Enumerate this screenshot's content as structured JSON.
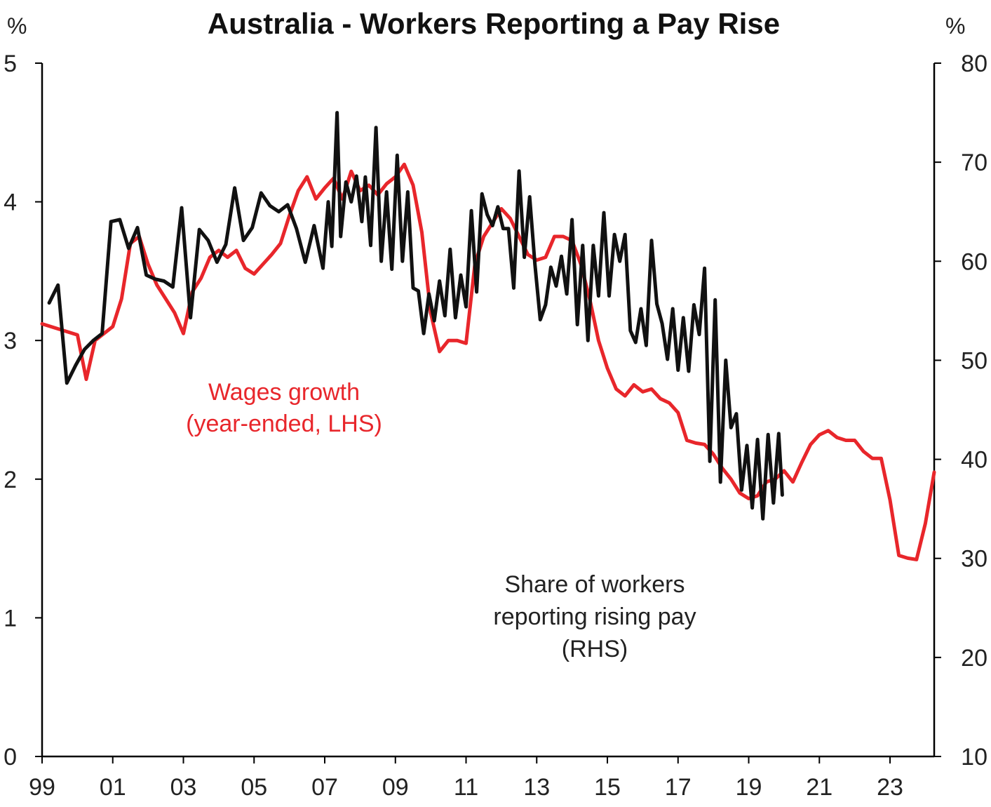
{
  "chart_data": {
    "type": "line",
    "title": "Australia - Workers Reporting a Pay Rise",
    "left_unit": "%",
    "right_unit": "%",
    "colors": {
      "wages": "#e8262b",
      "share": "#111111"
    },
    "x_range": [
      1999.0,
      2024.25
    ],
    "x_ticks": [
      {
        "value": 1999,
        "label": "99"
      },
      {
        "value": 2001,
        "label": "01"
      },
      {
        "value": 2003,
        "label": "03"
      },
      {
        "value": 2005,
        "label": "05"
      },
      {
        "value": 2007,
        "label": "07"
      },
      {
        "value": 2009,
        "label": "09"
      },
      {
        "value": 2011,
        "label": "11"
      },
      {
        "value": 2013,
        "label": "13"
      },
      {
        "value": 2015,
        "label": "15"
      },
      {
        "value": 2017,
        "label": "17"
      },
      {
        "value": 2019,
        "label": "19"
      },
      {
        "value": 2021,
        "label": "21"
      },
      {
        "value": 2023,
        "label": "23"
      }
    ],
    "y_left": {
      "range": [
        0,
        5
      ],
      "ticks": [
        "0",
        "1",
        "2",
        "3",
        "4",
        "5"
      ]
    },
    "y_right": {
      "range": [
        10,
        80
      ],
      "ticks": [
        "10",
        "20",
        "30",
        "40",
        "50",
        "60",
        "70",
        "80"
      ]
    },
    "series": [
      {
        "name": "Wages growth (year-ended, LHS)",
        "axis": "left",
        "points": [
          [
            1999.0,
            3.12
          ],
          [
            1999.5,
            3.08
          ],
          [
            2000.0,
            3.04
          ],
          [
            2000.25,
            2.72
          ],
          [
            2000.5,
            3.0
          ],
          [
            2000.75,
            3.05
          ],
          [
            2001.0,
            3.1
          ],
          [
            2001.25,
            3.3
          ],
          [
            2001.5,
            3.7
          ],
          [
            2001.75,
            3.75
          ],
          [
            2002.0,
            3.55
          ],
          [
            2002.25,
            3.4
          ],
          [
            2002.5,
            3.3
          ],
          [
            2002.75,
            3.2
          ],
          [
            2003.0,
            3.05
          ],
          [
            2003.25,
            3.35
          ],
          [
            2003.5,
            3.45
          ],
          [
            2003.75,
            3.6
          ],
          [
            2004.0,
            3.65
          ],
          [
            2004.25,
            3.6
          ],
          [
            2004.5,
            3.65
          ],
          [
            2004.75,
            3.52
          ],
          [
            2005.0,
            3.48
          ],
          [
            2005.25,
            3.55
          ],
          [
            2005.5,
            3.62
          ],
          [
            2005.75,
            3.7
          ],
          [
            2006.0,
            3.9
          ],
          [
            2006.25,
            4.08
          ],
          [
            2006.5,
            4.18
          ],
          [
            2006.75,
            4.02
          ],
          [
            2007.0,
            4.1
          ],
          [
            2007.25,
            4.17
          ],
          [
            2007.5,
            4.02
          ],
          [
            2007.75,
            4.22
          ],
          [
            2008.0,
            4.08
          ],
          [
            2008.25,
            4.12
          ],
          [
            2008.5,
            4.05
          ],
          [
            2008.75,
            4.13
          ],
          [
            2009.0,
            4.18
          ],
          [
            2009.25,
            4.27
          ],
          [
            2009.5,
            4.12
          ],
          [
            2009.75,
            3.78
          ],
          [
            2010.0,
            3.2
          ],
          [
            2010.25,
            2.92
          ],
          [
            2010.5,
            3.0
          ],
          [
            2010.75,
            3.0
          ],
          [
            2011.0,
            2.98
          ],
          [
            2011.25,
            3.55
          ],
          [
            2011.5,
            3.75
          ],
          [
            2011.75,
            3.85
          ],
          [
            2012.0,
            3.95
          ],
          [
            2012.25,
            3.88
          ],
          [
            2012.5,
            3.75
          ],
          [
            2012.75,
            3.62
          ],
          [
            2013.0,
            3.58
          ],
          [
            2013.25,
            3.6
          ],
          [
            2013.5,
            3.75
          ],
          [
            2013.75,
            3.75
          ],
          [
            2014.0,
            3.72
          ],
          [
            2014.25,
            3.55
          ],
          [
            2014.5,
            3.3
          ],
          [
            2014.75,
            3.0
          ],
          [
            2015.0,
            2.8
          ],
          [
            2015.25,
            2.65
          ],
          [
            2015.5,
            2.6
          ],
          [
            2015.75,
            2.68
          ],
          [
            2016.0,
            2.63
          ],
          [
            2016.25,
            2.65
          ],
          [
            2016.5,
            2.58
          ],
          [
            2016.75,
            2.55
          ],
          [
            2017.0,
            2.48
          ],
          [
            2017.25,
            2.28
          ],
          [
            2017.5,
            2.26
          ],
          [
            2017.75,
            2.25
          ],
          [
            2018.0,
            2.18
          ],
          [
            2018.25,
            2.08
          ],
          [
            2018.5,
            2.0
          ],
          [
            2018.75,
            1.9
          ],
          [
            2019.0,
            1.86
          ],
          [
            2019.25,
            1.88
          ],
          [
            2019.5,
            1.98
          ],
          [
            2019.75,
            2.0
          ],
          [
            2020.0,
            2.06
          ],
          [
            2020.25,
            1.98
          ],
          [
            2020.5,
            2.12
          ],
          [
            2020.75,
            2.25
          ],
          [
            2021.0,
            2.32
          ],
          [
            2021.25,
            2.35
          ],
          [
            2021.5,
            2.3
          ],
          [
            2021.75,
            2.28
          ],
          [
            2022.0,
            2.28
          ],
          [
            2022.25,
            2.2
          ],
          [
            2022.5,
            2.15
          ],
          [
            2022.75,
            2.15
          ],
          [
            2023.0,
            1.85
          ],
          [
            2023.25,
            1.45
          ],
          [
            2023.5,
            1.43
          ],
          [
            2023.75,
            1.42
          ],
          [
            2024.0,
            1.68
          ],
          [
            2024.25,
            2.05
          ]
        ]
      },
      {
        "name": "Share of workers reporting rising pay (RHS)",
        "axis": "right",
        "points": [
          [
            1999.2,
            55.8
          ],
          [
            1999.45,
            57.6
          ],
          [
            1999.7,
            47.7
          ],
          [
            1999.95,
            49.5
          ],
          [
            2000.2,
            51.1
          ],
          [
            2000.45,
            52.0
          ],
          [
            2000.7,
            52.7
          ],
          [
            2000.95,
            64.0
          ],
          [
            2001.2,
            64.2
          ],
          [
            2001.45,
            61.3
          ],
          [
            2001.7,
            63.4
          ],
          [
            2001.95,
            58.6
          ],
          [
            2002.2,
            58.2
          ],
          [
            2002.45,
            58.0
          ],
          [
            2002.7,
            57.4
          ],
          [
            2002.95,
            65.4
          ],
          [
            2003.2,
            54.3
          ],
          [
            2003.45,
            63.2
          ],
          [
            2003.7,
            62.1
          ],
          [
            2003.95,
            59.9
          ],
          [
            2004.2,
            61.7
          ],
          [
            2004.45,
            67.4
          ],
          [
            2004.7,
            62.1
          ],
          [
            2004.95,
            63.4
          ],
          [
            2005.2,
            66.9
          ],
          [
            2005.45,
            65.6
          ],
          [
            2005.7,
            65.0
          ],
          [
            2005.95,
            65.7
          ],
          [
            2006.2,
            63.3
          ],
          [
            2006.45,
            59.9
          ],
          [
            2006.7,
            63.6
          ],
          [
            2006.95,
            59.3
          ],
          [
            2007.1,
            66.0
          ],
          [
            2007.2,
            61.5
          ],
          [
            2007.35,
            75.0
          ],
          [
            2007.45,
            62.5
          ],
          [
            2007.6,
            68.0
          ],
          [
            2007.75,
            66.0
          ],
          [
            2007.9,
            68.6
          ],
          [
            2008.05,
            64.0
          ],
          [
            2008.15,
            68.5
          ],
          [
            2008.3,
            61.6
          ],
          [
            2008.45,
            73.5
          ],
          [
            2008.6,
            60.0
          ],
          [
            2008.75,
            67.0
          ],
          [
            2008.9,
            59.2
          ],
          [
            2009.05,
            70.7
          ],
          [
            2009.2,
            60.0
          ],
          [
            2009.35,
            67.0
          ],
          [
            2009.5,
            57.3
          ],
          [
            2009.65,
            57.0
          ],
          [
            2009.8,
            52.7
          ],
          [
            2009.95,
            56.7
          ],
          [
            2010.1,
            54.0
          ],
          [
            2010.25,
            58.0
          ],
          [
            2010.4,
            54.5
          ],
          [
            2010.55,
            61.2
          ],
          [
            2010.7,
            54.3
          ],
          [
            2010.85,
            58.6
          ],
          [
            2011.0,
            55.4
          ],
          [
            2011.15,
            65.1
          ],
          [
            2011.3,
            56.9
          ],
          [
            2011.45,
            66.8
          ],
          [
            2011.6,
            64.7
          ],
          [
            2011.75,
            63.6
          ],
          [
            2011.9,
            65.5
          ],
          [
            2012.05,
            63.3
          ],
          [
            2012.2,
            63.3
          ],
          [
            2012.35,
            57.3
          ],
          [
            2012.5,
            69.1
          ],
          [
            2012.65,
            60.4
          ],
          [
            2012.8,
            66.5
          ],
          [
            2012.95,
            59.7
          ],
          [
            2013.1,
            54.1
          ],
          [
            2013.25,
            55.6
          ],
          [
            2013.4,
            59.4
          ],
          [
            2013.55,
            57.5
          ],
          [
            2013.7,
            60.5
          ],
          [
            2013.85,
            56.7
          ],
          [
            2014.0,
            64.2
          ],
          [
            2014.15,
            53.6
          ],
          [
            2014.3,
            61.6
          ],
          [
            2014.45,
            52.0
          ],
          [
            2014.6,
            61.6
          ],
          [
            2014.75,
            56.5
          ],
          [
            2014.9,
            64.9
          ],
          [
            2015.05,
            56.5
          ],
          [
            2015.2,
            62.7
          ],
          [
            2015.35,
            60.0
          ],
          [
            2015.5,
            62.7
          ],
          [
            2015.65,
            53.0
          ],
          [
            2015.8,
            51.8
          ],
          [
            2015.95,
            55.2
          ],
          [
            2016.1,
            51.5
          ],
          [
            2016.25,
            62.1
          ],
          [
            2016.4,
            55.7
          ],
          [
            2016.55,
            53.7
          ],
          [
            2016.7,
            50.1
          ],
          [
            2016.85,
            55.2
          ],
          [
            2017.0,
            49.0
          ],
          [
            2017.15,
            54.3
          ],
          [
            2017.3,
            48.9
          ],
          [
            2017.45,
            55.6
          ],
          [
            2017.6,
            52.6
          ],
          [
            2017.75,
            59.3
          ],
          [
            2017.9,
            39.8
          ],
          [
            2018.05,
            56.1
          ],
          [
            2018.2,
            37.7
          ],
          [
            2018.35,
            50.0
          ],
          [
            2018.5,
            43.2
          ],
          [
            2018.65,
            44.6
          ],
          [
            2018.8,
            36.9
          ],
          [
            2018.95,
            41.4
          ],
          [
            2019.1,
            35.1
          ],
          [
            2019.25,
            42.0
          ],
          [
            2019.4,
            34.0
          ],
          [
            2019.55,
            42.5
          ],
          [
            2019.7,
            35.6
          ],
          [
            2019.85,
            42.6
          ],
          [
            2019.95,
            36.4
          ]
        ]
      }
    ]
  },
  "annotations": {
    "wages_label_line1": "Wages growth",
    "wages_label_line2": "(year-ended, LHS)",
    "share_label_line1": "Share of workers",
    "share_label_line2": "reporting rising pay",
    "share_label_line3": "(RHS)"
  }
}
